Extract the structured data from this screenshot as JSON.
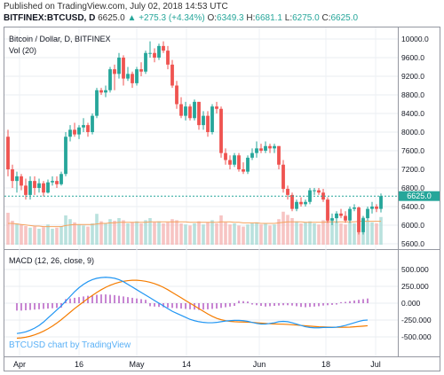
{
  "header": {
    "published": "Published on TradingView.com, July 02, 2018 14:53 UTC",
    "symbol": "BITFINEX:BTCUSD, D",
    "price": "6625.0",
    "change_arrow": "▲",
    "change": "+275.3 (+4.34%)",
    "o_label": "O:",
    "o": "6349.3",
    "h_label": "H:",
    "h": "6681.1",
    "l_label": "L:",
    "l": "6275.0",
    "c_label": "C:",
    "c": "6625.0"
  },
  "main_pane": {
    "title": "Bitcoin / Dollar, D, BITFINEX",
    "volume_label": "Vol (20)",
    "price_ticks": [
      "10000.0",
      "9600.0",
      "9200.0",
      "8800.0",
      "8400.0",
      "8000.0",
      "7600.0",
      "7200.0",
      "6800.0",
      "6400.0",
      "6000.0",
      "5600.0"
    ],
    "last_price_tag": "6625.0"
  },
  "macd_pane": {
    "title": "MACD (12, 26, close, 9)",
    "ticks": [
      "500.000",
      "250.000",
      "0.000",
      "-250.000",
      "-500.000"
    ],
    "watermark": "BTCUSD chart by TradingView"
  },
  "x_axis": {
    "labels": [
      "Apr",
      "16",
      "May",
      "14",
      "Jun",
      "18",
      "Jul"
    ]
  },
  "colors": {
    "up": "#26a69a",
    "down": "#ef5350",
    "macd": "#2196f3",
    "signal": "#f57c00",
    "hist": "#9c27b0"
  },
  "chart_data": {
    "type": "candlestick",
    "ylim": [
      5500,
      10100
    ],
    "candles": [
      {
        "o": 7900,
        "h": 8050,
        "l": 7050,
        "c": 7200
      },
      {
        "o": 7200,
        "h": 7300,
        "l": 6800,
        "c": 6950
      },
      {
        "o": 6950,
        "h": 7150,
        "l": 6700,
        "c": 7050
      },
      {
        "o": 7050,
        "h": 7100,
        "l": 6750,
        "c": 6850
      },
      {
        "o": 6850,
        "h": 7000,
        "l": 6550,
        "c": 6650
      },
      {
        "o": 6650,
        "h": 7050,
        "l": 6550,
        "c": 6950
      },
      {
        "o": 6950,
        "h": 7050,
        "l": 6650,
        "c": 6800
      },
      {
        "o": 6800,
        "h": 7000,
        "l": 6700,
        "c": 6900
      },
      {
        "o": 6900,
        "h": 6950,
        "l": 6620,
        "c": 6700
      },
      {
        "o": 6700,
        "h": 6980,
        "l": 6680,
        "c": 6920
      },
      {
        "o": 6920,
        "h": 7050,
        "l": 6850,
        "c": 6950
      },
      {
        "o": 6950,
        "h": 7050,
        "l": 6800,
        "c": 6880
      },
      {
        "o": 6880,
        "h": 7150,
        "l": 6850,
        "c": 7100
      },
      {
        "o": 7100,
        "h": 8000,
        "l": 7050,
        "c": 7900
      },
      {
        "o": 7900,
        "h": 8150,
        "l": 7800,
        "c": 8050
      },
      {
        "o": 8050,
        "h": 8200,
        "l": 7900,
        "c": 7950
      },
      {
        "o": 7950,
        "h": 8150,
        "l": 7850,
        "c": 8100
      },
      {
        "o": 8100,
        "h": 8300,
        "l": 8000,
        "c": 8150
      },
      {
        "o": 8150,
        "h": 8200,
        "l": 7900,
        "c": 8000
      },
      {
        "o": 8000,
        "h": 8400,
        "l": 7950,
        "c": 8350
      },
      {
        "o": 8350,
        "h": 8950,
        "l": 8300,
        "c": 8900
      },
      {
        "o": 8900,
        "h": 8950,
        "l": 8800,
        "c": 8850
      },
      {
        "o": 8850,
        "h": 9000,
        "l": 8750,
        "c": 8900
      },
      {
        "o": 8900,
        "h": 9400,
        "l": 8850,
        "c": 9350
      },
      {
        "o": 9350,
        "h": 9450,
        "l": 8900,
        "c": 9250
      },
      {
        "o": 9250,
        "h": 9700,
        "l": 9150,
        "c": 9600
      },
      {
        "o": 9600,
        "h": 9650,
        "l": 9000,
        "c": 9150
      },
      {
        "o": 9150,
        "h": 9400,
        "l": 9100,
        "c": 9250
      },
      {
        "o": 9250,
        "h": 9300,
        "l": 8950,
        "c": 9050
      },
      {
        "o": 9050,
        "h": 9400,
        "l": 9000,
        "c": 9350
      },
      {
        "o": 9350,
        "h": 9500,
        "l": 9200,
        "c": 9300
      },
      {
        "o": 9300,
        "h": 9750,
        "l": 9250,
        "c": 9700
      },
      {
        "o": 9700,
        "h": 9950,
        "l": 9600,
        "c": 9700
      },
      {
        "o": 9700,
        "h": 9800,
        "l": 9500,
        "c": 9600
      },
      {
        "o": 9600,
        "h": 9900,
        "l": 9550,
        "c": 9850
      },
      {
        "o": 9850,
        "h": 9950,
        "l": 9700,
        "c": 9750
      },
      {
        "o": 9750,
        "h": 9850,
        "l": 9350,
        "c": 9450
      },
      {
        "o": 9450,
        "h": 9550,
        "l": 8950,
        "c": 9000
      },
      {
        "o": 9000,
        "h": 9100,
        "l": 8500,
        "c": 8600
      },
      {
        "o": 8600,
        "h": 8750,
        "l": 8300,
        "c": 8350
      },
      {
        "o": 8350,
        "h": 8650,
        "l": 8250,
        "c": 8550
      },
      {
        "o": 8550,
        "h": 8600,
        "l": 8250,
        "c": 8300
      },
      {
        "o": 8300,
        "h": 8700,
        "l": 8250,
        "c": 8650
      },
      {
        "o": 8650,
        "h": 8650,
        "l": 8050,
        "c": 8150
      },
      {
        "o": 8150,
        "h": 8450,
        "l": 8050,
        "c": 8350
      },
      {
        "o": 8350,
        "h": 8450,
        "l": 7900,
        "c": 8000
      },
      {
        "o": 8000,
        "h": 8600,
        "l": 7950,
        "c": 8550
      },
      {
        "o": 8550,
        "h": 8650,
        "l": 8400,
        "c": 8500
      },
      {
        "o": 8500,
        "h": 8550,
        "l": 7450,
        "c": 7550
      },
      {
        "o": 7550,
        "h": 7650,
        "l": 7300,
        "c": 7400
      },
      {
        "o": 7400,
        "h": 7500,
        "l": 7200,
        "c": 7300
      },
      {
        "o": 7300,
        "h": 7550,
        "l": 7250,
        "c": 7500
      },
      {
        "o": 7500,
        "h": 7550,
        "l": 7150,
        "c": 7200
      },
      {
        "o": 7200,
        "h": 7350,
        "l": 7100,
        "c": 7150
      },
      {
        "o": 7150,
        "h": 7500,
        "l": 7100,
        "c": 7450
      },
      {
        "o": 7450,
        "h": 7650,
        "l": 7400,
        "c": 7550
      },
      {
        "o": 7550,
        "h": 7800,
        "l": 7450,
        "c": 7650
      },
      {
        "o": 7650,
        "h": 7750,
        "l": 7550,
        "c": 7600
      },
      {
        "o": 7600,
        "h": 7800,
        "l": 7550,
        "c": 7700
      },
      {
        "o": 7700,
        "h": 7750,
        "l": 7550,
        "c": 7650
      },
      {
        "o": 7650,
        "h": 7750,
        "l": 7550,
        "c": 7700
      },
      {
        "o": 7700,
        "h": 7700,
        "l": 7200,
        "c": 7300
      },
      {
        "o": 7300,
        "h": 7400,
        "l": 6700,
        "c": 6780
      },
      {
        "o": 6780,
        "h": 6850,
        "l": 6550,
        "c": 6650
      },
      {
        "o": 6650,
        "h": 6700,
        "l": 6300,
        "c": 6350
      },
      {
        "o": 6350,
        "h": 6550,
        "l": 6300,
        "c": 6500
      },
      {
        "o": 6500,
        "h": 6600,
        "l": 6400,
        "c": 6450
      },
      {
        "o": 6450,
        "h": 6550,
        "l": 6400,
        "c": 6500
      },
      {
        "o": 6500,
        "h": 6800,
        "l": 6450,
        "c": 6750
      },
      {
        "o": 6750,
        "h": 6800,
        "l": 6650,
        "c": 6750
      },
      {
        "o": 6750,
        "h": 6800,
        "l": 6650,
        "c": 6700
      },
      {
        "o": 6700,
        "h": 6780,
        "l": 6500,
        "c": 6550
      },
      {
        "o": 6550,
        "h": 6600,
        "l": 6050,
        "c": 6100
      },
      {
        "o": 6100,
        "h": 6250,
        "l": 6000,
        "c": 6150
      },
      {
        "o": 6150,
        "h": 6300,
        "l": 6050,
        "c": 6250
      },
      {
        "o": 6250,
        "h": 6350,
        "l": 6150,
        "c": 6200
      },
      {
        "o": 6200,
        "h": 6300,
        "l": 6050,
        "c": 6100
      },
      {
        "o": 6100,
        "h": 6400,
        "l": 6050,
        "c": 6350
      },
      {
        "o": 6350,
        "h": 6450,
        "l": 6300,
        "c": 6380
      },
      {
        "o": 6380,
        "h": 6400,
        "l": 5800,
        "c": 5850
      },
      {
        "o": 5850,
        "h": 6200,
        "l": 5800,
        "c": 6150
      },
      {
        "o": 6150,
        "h": 6400,
        "l": 6100,
        "c": 6350
      },
      {
        "o": 6350,
        "h": 6500,
        "l": 6250,
        "c": 6400
      },
      {
        "o": 6400,
        "h": 6450,
        "l": 6280,
        "c": 6350
      },
      {
        "o": 6350,
        "h": 6681,
        "l": 6275,
        "c": 6625
      }
    ],
    "volume": [
      60,
      45,
      40,
      38,
      35,
      32,
      34,
      30,
      33,
      38,
      30,
      32,
      35,
      55,
      48,
      42,
      38,
      36,
      34,
      40,
      58,
      44,
      40,
      48,
      45,
      50,
      46,
      40,
      42,
      44,
      40,
      46,
      50,
      42,
      44,
      40,
      42,
      48,
      46,
      40,
      38,
      36,
      40,
      44,
      38,
      42,
      46,
      40,
      55,
      42,
      38,
      40,
      36,
      34,
      38,
      40,
      42,
      38,
      40,
      36,
      38,
      48,
      62,
      56,
      50,
      44,
      40,
      42,
      44,
      40,
      38,
      46,
      60,
      48,
      42,
      40,
      38,
      42,
      40,
      58,
      52,
      46,
      42,
      40,
      52
    ],
    "volume_ma": [
      40,
      40,
      39,
      38,
      37,
      36,
      35,
      35,
      34,
      34,
      34,
      34,
      34,
      36,
      37,
      38,
      38,
      38,
      38,
      38,
      39,
      40,
      40,
      41,
      41,
      42,
      42,
      42,
      42,
      42,
      42,
      42,
      43,
      43,
      43,
      43,
      43,
      43,
      43,
      43,
      43,
      42,
      42,
      42,
      42,
      42,
      42,
      42,
      43,
      43,
      43,
      42,
      42,
      41,
      41,
      41,
      41,
      40,
      40,
      40,
      40,
      41,
      42,
      43,
      43,
      43,
      43,
      42,
      42,
      42,
      42,
      42,
      43,
      43,
      43,
      43,
      43,
      43,
      43,
      44,
      44,
      44,
      44,
      44,
      44
    ],
    "macd_ylim": [
      -600,
      600
    ],
    "macd_x_offset": 2,
    "macd": [
      -450,
      -440,
      -425,
      -400,
      -370,
      -330,
      -280,
      -220,
      -160,
      -100,
      -40,
      30,
      100,
      170,
      230,
      280,
      320,
      350,
      370,
      380,
      385,
      380,
      370,
      350,
      320,
      280,
      240,
      200,
      160,
      120,
      80,
      40,
      0,
      -40,
      -80,
      -120,
      -150,
      -180,
      -210,
      -240,
      -260,
      -275,
      -285,
      -290,
      -290,
      -285,
      -275,
      -265,
      -260,
      -255,
      -255,
      -260,
      -270,
      -285,
      -300,
      -310,
      -310,
      -300,
      -290,
      -275,
      -270,
      -275,
      -290,
      -310,
      -330,
      -350,
      -360,
      -365,
      -365,
      -360,
      -360,
      -360,
      -355,
      -345,
      -330,
      -310,
      -290,
      -270,
      -255,
      -250
    ],
    "signal": [
      -520,
      -515,
      -505,
      -490,
      -470,
      -445,
      -415,
      -380,
      -340,
      -295,
      -245,
      -190,
      -135,
      -80,
      -30,
      20,
      70,
      115,
      160,
      200,
      235,
      265,
      290,
      310,
      325,
      335,
      340,
      340,
      335,
      325,
      310,
      290,
      265,
      235,
      200,
      160,
      120,
      80,
      40,
      0,
      -40,
      -80,
      -120,
      -160,
      -195,
      -225,
      -245,
      -260,
      -270,
      -275,
      -278,
      -280,
      -282,
      -285,
      -290,
      -295,
      -300,
      -305,
      -308,
      -310,
      -312,
      -315,
      -320,
      -325,
      -330,
      -335,
      -340,
      -345,
      -350,
      -352,
      -355,
      -357,
      -358,
      -358,
      -357,
      -355,
      -350,
      -345,
      -340,
      -335
    ],
    "hist": [
      -110,
      -110,
      -105,
      -100,
      -95,
      -90,
      -85,
      -80,
      -75,
      -70,
      -65,
      60,
      70,
      80,
      90,
      100,
      110,
      120,
      125,
      130,
      130,
      125,
      120,
      110,
      100,
      90,
      80,
      70,
      60,
      50,
      -45,
      -50,
      -55,
      -60,
      -65,
      -70,
      -75,
      -80,
      -85,
      -90,
      -95,
      -100,
      -95,
      -90,
      -85,
      -80,
      -70,
      -60,
      -50,
      -40,
      35,
      30,
      25,
      -20,
      -30,
      -40,
      -50,
      -45,
      -40,
      -35,
      -30,
      -30,
      -35,
      -45,
      -55,
      -60,
      -55,
      -50,
      -45,
      -35,
      -30,
      -25,
      -20,
      15,
      20,
      30,
      40,
      50,
      60,
      70
    ]
  }
}
